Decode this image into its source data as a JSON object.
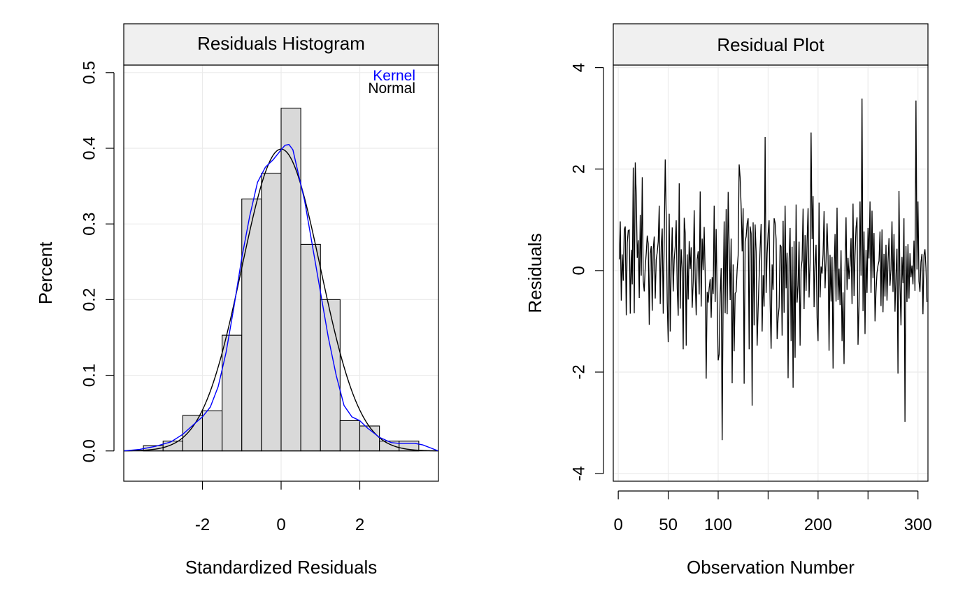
{
  "chart_data": [
    {
      "type": "bar",
      "panel": "left",
      "title": "Residuals Histogram",
      "xlabel": "Standardized Residuals",
      "ylabel": "Percent",
      "xlim": [
        -4,
        4
      ],
      "ylim": [
        -0.04,
        0.51
      ],
      "xticks": [
        -2,
        0,
        2
      ],
      "xtick_labels": [
        "-2",
        "0",
        "2"
      ],
      "yticks": [
        0.0,
        0.1,
        0.2,
        0.3,
        0.4,
        0.5
      ],
      "ytick_labels": [
        "0.0",
        "0.1",
        "0.2",
        "0.3",
        "0.4",
        "0.5"
      ],
      "grid": true,
      "legend_position": "top-right",
      "bin_width": 0.5,
      "bins": [
        {
          "start": -3.5,
          "end": -3.0,
          "value": 0.007
        },
        {
          "start": -3.0,
          "end": -2.5,
          "value": 0.013
        },
        {
          "start": -2.5,
          "end": -2.0,
          "value": 0.047
        },
        {
          "start": -2.0,
          "end": -1.5,
          "value": 0.053
        },
        {
          "start": -1.5,
          "end": -1.0,
          "value": 0.153
        },
        {
          "start": -1.0,
          "end": -0.5,
          "value": 0.333
        },
        {
          "start": -0.5,
          "end": 0.0,
          "value": 0.367
        },
        {
          "start": 0.0,
          "end": 0.5,
          "value": 0.453
        },
        {
          "start": 0.5,
          "end": 1.0,
          "value": 0.273
        },
        {
          "start": 1.0,
          "end": 1.5,
          "value": 0.2
        },
        {
          "start": 1.5,
          "end": 2.0,
          "value": 0.04
        },
        {
          "start": 2.0,
          "end": 2.5,
          "value": 0.033
        },
        {
          "start": 2.5,
          "end": 3.0,
          "value": 0.013
        },
        {
          "start": 3.0,
          "end": 3.5,
          "value": 0.013
        }
      ],
      "series": [
        {
          "name": "Kernel",
          "color": "#0000ff",
          "x": [
            -4.0,
            -3.6,
            -3.2,
            -2.8,
            -2.5,
            -2.2,
            -2.0,
            -1.8,
            -1.6,
            -1.4,
            -1.2,
            -1.0,
            -0.8,
            -0.6,
            -0.4,
            -0.2,
            0.0,
            0.1,
            0.2,
            0.3,
            0.4,
            0.6,
            0.8,
            1.0,
            1.2,
            1.4,
            1.6,
            1.8,
            2.0,
            2.2,
            2.5,
            2.8,
            3.0,
            3.2,
            3.4,
            3.6,
            4.0
          ],
          "y": [
            0.0,
            0.002,
            0.006,
            0.012,
            0.022,
            0.036,
            0.045,
            0.058,
            0.085,
            0.13,
            0.19,
            0.255,
            0.31,
            0.355,
            0.375,
            0.385,
            0.398,
            0.404,
            0.405,
            0.398,
            0.375,
            0.33,
            0.27,
            0.21,
            0.15,
            0.1,
            0.06,
            0.045,
            0.04,
            0.03,
            0.018,
            0.011,
            0.01,
            0.01,
            0.01,
            0.008,
            0.0
          ]
        },
        {
          "name": "Normal",
          "color": "#000000",
          "distribution": "normal",
          "mean": 0.0,
          "sd": 1.0
        }
      ]
    },
    {
      "type": "line",
      "panel": "right",
      "title": "Residual Plot",
      "xlabel": "Observation Number",
      "ylabel": "Residuals",
      "xlim": [
        -5,
        310
      ],
      "ylim": [
        -4.15,
        4.05
      ],
      "xticks": [
        0,
        50,
        100,
        150,
        200,
        250,
        300
      ],
      "xtick_labels": [
        "0",
        "50",
        "100",
        "",
        "200",
        "",
        "300"
      ],
      "yticks": [
        -4,
        -2,
        0,
        2,
        4
      ],
      "ytick_labels": [
        "-4",
        "-2",
        "0",
        "2",
        "4"
      ],
      "grid": true,
      "series": [
        {
          "name": "",
          "color": "#000000",
          "x_start": 1,
          "x_step": 1,
          "values": [
            0.22,
            0.97,
            -0.59,
            0.32,
            -0.2,
            0.81,
            0.87,
            -0.88,
            0.55,
            0.79,
            0.8,
            -0.85,
            0.41,
            -0.27,
            2.03,
            -0.84,
            2.13,
            1.49,
            0.25,
            0.6,
            -0.54,
            1.1,
            -0.1,
            1.84,
            -0.2,
            -0.41,
            0.07,
            0.34,
            0.69,
            0.53,
            -1.07,
            0.34,
            0.48,
            -0.79,
            0.42,
            0.67,
            -0.55,
            0.22,
            0.36,
            0.57,
            1.28,
            -0.66,
            0.48,
            0.83,
            -0.85,
            0.61,
            2.19,
            1.04,
            -0.62,
            -1.41,
            1.12,
            -1.2,
            0.08,
            0.85,
            -0.41,
            0.22,
            0.47,
            0.99,
            -0.34,
            -0.89,
            1.72,
            -0.75,
            0.42,
            0.05,
            -1.55,
            1.04,
            0.74,
            -1.48,
            0.32,
            -0.57,
            0.58,
            0.03,
            0.46,
            -0.73,
            -0.21,
            1.19,
            -0.15,
            -0.88,
            0.22,
            0.38,
            -0.47,
            1.56,
            -0.71,
            0.63,
            0.01,
            0.86,
            -0.08,
            -2.13,
            -0.42,
            -0.63,
            -0.34,
            -0.17,
            -0.93,
            -0.13,
            -0.46,
            1.28,
            -0.62,
            0.82,
            -0.57,
            -1.77,
            -1.65,
            -0.46,
            0.05,
            -3.34,
            -0.51,
            0.97,
            -0.84,
            1.21,
            -0.86,
            1.55,
            0.47,
            -0.58,
            0.63,
            -2.22,
            0.12,
            -1.59,
            -0.45,
            -0.42,
            0.02,
            0.3,
            2.09,
            1.83,
            1.25,
            0.38,
            1.23,
            -2.23,
            0.57,
            0.67,
            0.93,
            1.03,
            -1.55,
            0.87,
            0.73,
            -2.66,
            0.95,
            -1.08,
            0.91,
            0.37,
            -1.48,
            -0.76,
            -0.13,
            0.44,
            0.92,
            -1.2,
            -0.09,
            -0.71,
            2.63,
            -0.44,
            0.34,
            0.73,
            0.99,
            -0.66,
            -1.54,
            0.12,
            -0.38,
            1.03,
            0.94,
            0.62,
            -1.35,
            -0.94,
            -0.72,
            0.51,
            0.47,
            -1.28,
            0.98,
            -0.83,
            1.28,
            -0.35,
            0.35,
            -2.12,
            0.23,
            0.84,
            -1.39,
            0.47,
            -2.31,
            0.58,
            -1.72,
            1.3,
            -0.63,
            -0.29,
            0.57,
            -1.48,
            0.03,
            0.2,
            1.22,
            -0.76,
            0.7,
            -0.4,
            0.57,
            1.23,
            -0.53,
            0.15,
            2.72,
            0.62,
            1.47,
            -0.72,
            0.1,
            0.51,
            -0.93,
            -1.39,
            1.34,
            -0.53,
            0.08,
            -0.06,
            0.32,
            1.17,
            -0.35,
            0.21,
            0.93,
            0.28,
            -1.58,
            0.31,
            -0.61,
            0.27,
            -1.93,
            -0.08,
            0.72,
            -0.61,
            1.24,
            -0.58,
            0.04,
            -0.68,
            0.4,
            -1.39,
            -0.43,
            -1.84,
            0.05,
            1.05,
            -0.38,
            0.25,
            -0.17,
            0.1,
            0.64,
            -0.66,
            1.32,
            -0.5,
            0.3,
            0.84,
            1.05,
            -1.46,
            -0.69,
            1.36,
            -0.1,
            3.39,
            -0.8,
            0.77,
            -1.25,
            0.41,
            -0.44,
            0.84,
            0.24,
            1.36,
            -0.44,
            1.18,
            -0.15,
            0.74,
            -1.0,
            -0.42,
            -0.04,
            0.1,
            0.19,
            0.77,
            -0.7,
            0.81,
            -0.82,
            0.33,
            -0.51,
            0.51,
            -0.59,
            0.17,
            0.64,
            -0.3,
            0.02,
            0.97,
            -0.42,
            0.72,
            -0.81,
            -0.08,
            0.43,
            -2.03,
            1.57,
            -0.28,
            -1.08,
            0.27,
            -0.25,
            1.03,
            -2.98,
            0.48,
            -0.62,
            0.52,
            -0.55,
            0.34,
            -0.13,
            0.1,
            -0.27,
            0.59,
            -0.4,
            3.35,
            0.02,
            1.36,
            -0.21,
            -0.42,
            0.17,
            0.33,
            -0.86,
            0.3,
            0.42,
            0.05,
            -0.62
          ]
        }
      ]
    }
  ]
}
